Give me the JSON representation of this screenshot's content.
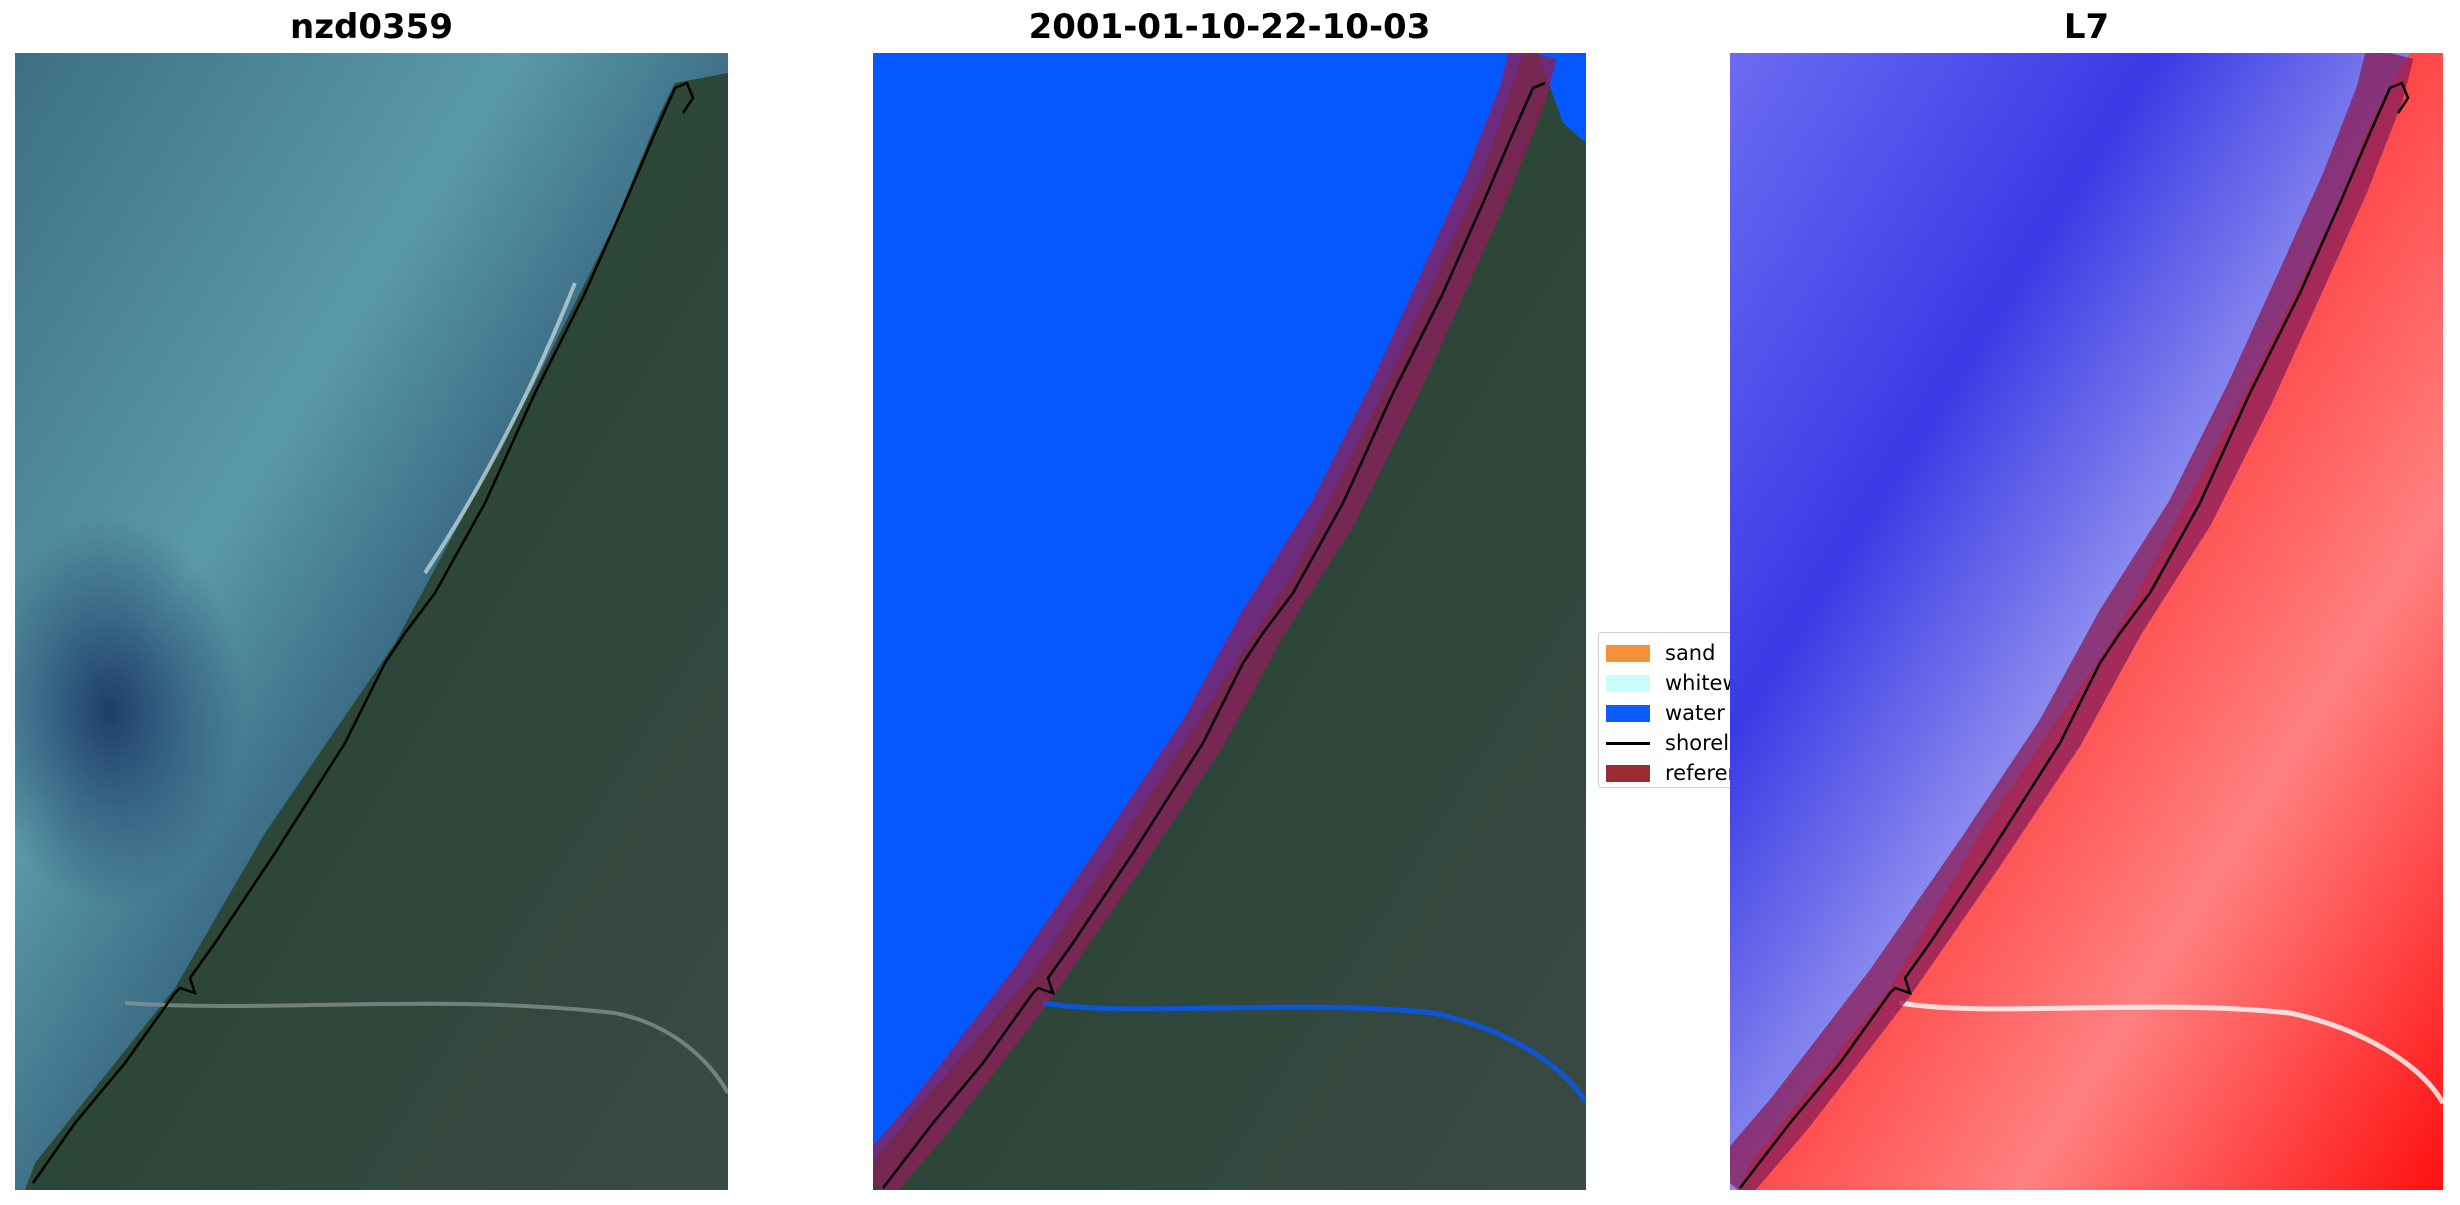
{
  "panels": [
    {
      "title": "nzd0359"
    },
    {
      "title": "2001-01-10-22-10-03"
    },
    {
      "title": "L7"
    }
  ],
  "legend": {
    "items": [
      {
        "label": "sand",
        "kind": "patch",
        "color": "#f5913a"
      },
      {
        "label": "whitewater",
        "kind": "patch",
        "color": "#c8fdfc"
      },
      {
        "label": "water",
        "kind": "patch",
        "color": "#0a5cfb"
      },
      {
        "label": "shoreline",
        "kind": "line",
        "color": "#000000"
      },
      {
        "label": "reference shoreline buffer",
        "kind": "patch",
        "color": "#9b2c31"
      }
    ]
  },
  "colors": {
    "water_class": "#0558ff",
    "buffer": "#8b1f5a",
    "shoreline": "#000000",
    "index_water": "#2a2ae8",
    "index_land": "#ff1a1a"
  }
}
